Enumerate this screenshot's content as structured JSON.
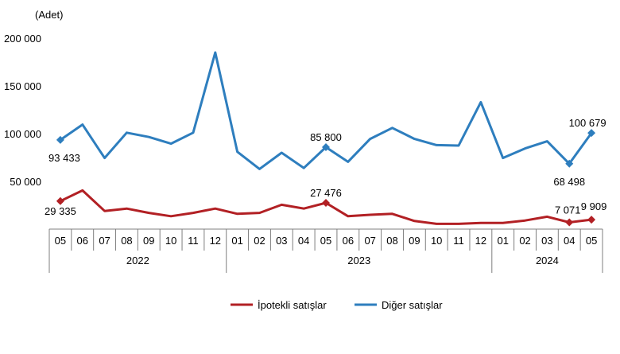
{
  "chart_data": {
    "type": "line",
    "ylabel": "(Adet)",
    "ylim": [
      0,
      200000
    ],
    "yticks": [
      {
        "value": 50000,
        "label": "50 000"
      },
      {
        "value": 100000,
        "label": "100 000"
      },
      {
        "value": 150000,
        "label": "150 000"
      },
      {
        "value": 200000,
        "label": "200 000"
      }
    ],
    "categories": [
      "05",
      "06",
      "07",
      "08",
      "09",
      "10",
      "11",
      "12",
      "01",
      "02",
      "03",
      "04",
      "05",
      "06",
      "07",
      "08",
      "09",
      "10",
      "11",
      "12",
      "01",
      "02",
      "03",
      "04",
      "05"
    ],
    "year_groups": [
      {
        "label": "2022",
        "start": 0,
        "end": 7
      },
      {
        "label": "2023",
        "start": 8,
        "end": 19
      },
      {
        "label": "2024",
        "start": 20,
        "end": 24
      }
    ],
    "series": [
      {
        "name": "İpotekli satışlar",
        "color": "#B22024",
        "values": [
          29335,
          40500,
          19000,
          21500,
          17000,
          13500,
          17000,
          21500,
          16000,
          17000,
          25500,
          21500,
          27476,
          13500,
          15000,
          16000,
          8500,
          5500,
          5500,
          6500,
          6500,
          9000,
          13000,
          7071,
          9909
        ],
        "markers": [
          0,
          12,
          23,
          24
        ],
        "labels": [
          {
            "index": 0,
            "text": "29 335"
          },
          {
            "index": 12,
            "text": "27 476"
          },
          {
            "index": 23,
            "text": "7 071"
          },
          {
            "index": 24,
            "text": "9 909"
          }
        ]
      },
      {
        "name": "Diğer satışlar",
        "color": "#2E7EBE",
        "values": [
          93433,
          109500,
          74500,
          101000,
          96500,
          89500,
          101000,
          185000,
          81000,
          63000,
          80000,
          64000,
          85800,
          70500,
          94500,
          106000,
          94500,
          88000,
          87500,
          133000,
          74500,
          84500,
          92000,
          68498,
          100679
        ],
        "markers": [
          0,
          12,
          23,
          24
        ],
        "labels": [
          {
            "index": 0,
            "text": "93 433"
          },
          {
            "index": 12,
            "text": "85 800"
          },
          {
            "index": 23,
            "text": "68 498"
          },
          {
            "index": 24,
            "text": "100 679"
          }
        ]
      }
    ],
    "legend": {
      "position": "bottom",
      "order": [
        0,
        1
      ]
    }
  }
}
